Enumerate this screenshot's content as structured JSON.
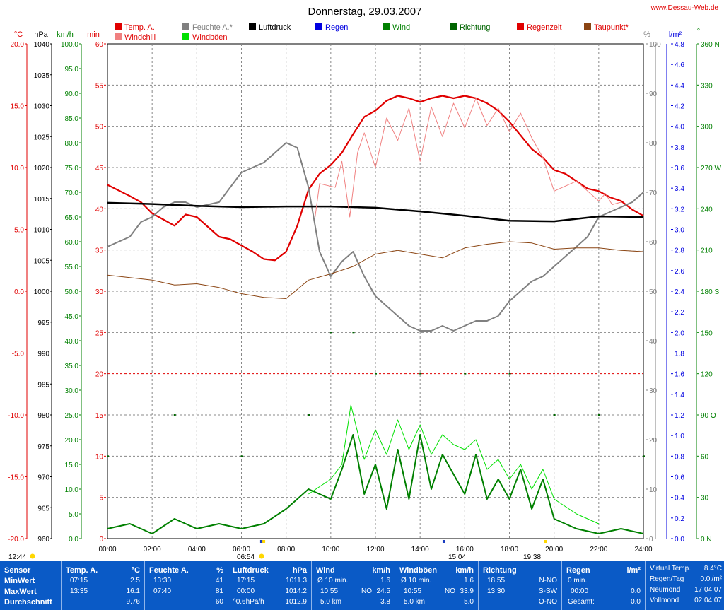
{
  "title": "Donnerstag, 29.03.2007",
  "site": "www.Dessau-Web.de",
  "colors": {
    "temp": "#e00000",
    "windchill": "#f08080",
    "humidity": "#808080",
    "pressure": "#000000",
    "rain": "#0000e0",
    "wind": "#008000",
    "windgust": "#00e000",
    "direction": "#006400",
    "raintime": "#e00000",
    "dewpoint": "#8b4513",
    "panel": "#0a5ac6"
  },
  "legend": [
    {
      "label": "Temp. A.",
      "color": "#e00000"
    },
    {
      "label": "Windchill",
      "color": "#f08080"
    },
    {
      "label": "Feuchte A.*",
      "color": "#808080"
    },
    {
      "label": "Windböen",
      "color": "#00e000"
    },
    {
      "label": "Luftdruck",
      "color": "#000000"
    },
    {
      "label": "Regen",
      "color": "#0000e0"
    },
    {
      "label": "Wind",
      "color": "#008000"
    },
    {
      "label": "Richtung",
      "color": "#006400"
    },
    {
      "label": "Regenzeit",
      "color": "#e00000"
    },
    {
      "label": "Taupunkt*",
      "color": "#8b4513"
    }
  ],
  "axes": {
    "temp": {
      "unit": "°C",
      "ticks": [
        "20.0",
        "15.0",
        "10.0",
        "5.0",
        "0.0",
        "-5.0",
        "-10.0",
        "-15.0",
        "-20.0"
      ]
    },
    "pressure": {
      "unit": "hPa",
      "ticks": [
        "1040",
        "1035",
        "1030",
        "1025",
        "1020",
        "1015",
        "1010",
        "1005",
        "1000",
        "995",
        "990",
        "985",
        "980",
        "975",
        "970",
        "965",
        "960"
      ]
    },
    "wind": {
      "unit": "km/h",
      "ticks": [
        "100.0",
        "95.0",
        "90.0",
        "85.0",
        "80.0",
        "75.0",
        "70.0",
        "65.0",
        "60.0",
        "55.0",
        "50.0",
        "45.0",
        "40.0",
        "35.0",
        "30.0",
        "25.0",
        "20.0",
        "15.0",
        "10.0",
        "5.0",
        "0.0"
      ]
    },
    "minutes": {
      "unit": "min",
      "ticks": [
        "60",
        "55",
        "50",
        "45",
        "40",
        "35",
        "30",
        "25",
        "20",
        "15",
        "10",
        "5",
        "0"
      ]
    },
    "humidity": {
      "unit": "%",
      "ticks": [
        "100",
        "90",
        "80",
        "70",
        "60",
        "50",
        "40",
        "30",
        "20",
        "10",
        "0"
      ]
    },
    "rain": {
      "unit": "l/m²",
      "ticks": [
        "4.8",
        "4.6",
        "4.4",
        "4.2",
        "4.0",
        "3.8",
        "3.6",
        "3.4",
        "3.2",
        "3.0",
        "2.8",
        "2.6",
        "2.4",
        "2.2",
        "2.0",
        "1.8",
        "1.6",
        "1.4",
        "1.2",
        "1.0",
        "0.8",
        "0.6",
        "0.4",
        "0.2",
        "0.0"
      ]
    },
    "direction": {
      "unit": "°",
      "ticks": [
        "360 N",
        "330",
        "300",
        "270 W",
        "240",
        "210",
        "180 S",
        "150",
        "120",
        "90 O",
        "60",
        "30",
        "0 N"
      ]
    },
    "time": {
      "ticks": [
        "00:00",
        "02:00",
        "04:00",
        "06:00",
        "08:00",
        "10:00",
        "12:00",
        "14:00",
        "16:00",
        "18:00",
        "20:00",
        "22:00",
        "24:00"
      ]
    }
  },
  "sun_markers": {
    "daylength": "12:44",
    "sunrise": "06:54",
    "noon": "15:04",
    "sunset": "19:38"
  },
  "chart_data": {
    "type": "line",
    "title": "Donnerstag, 29.03.2007",
    "xlabel": "",
    "x_hours_range": [
      0,
      24
    ],
    "series": [
      {
        "name": "Temp. A.",
        "unit": "°C",
        "x": [
          0,
          1,
          1.5,
          2,
          2.5,
          3,
          3.5,
          4,
          4.5,
          5,
          5.5,
          6,
          6.5,
          7,
          7.5,
          8,
          8.5,
          9,
          9.5,
          10,
          10.5,
          11,
          11.5,
          12,
          12.5,
          13,
          13.5,
          14,
          14.5,
          15,
          15.5,
          16,
          16.5,
          17,
          17.5,
          18,
          18.5,
          19,
          19.5,
          20,
          20.5,
          21,
          21.5,
          22,
          22.5,
          23,
          23.5,
          24
        ],
        "y": [
          8.6,
          7.7,
          7.2,
          6.3,
          5.8,
          5.3,
          6.2,
          6.0,
          5.2,
          4.4,
          4.2,
          3.7,
          3.2,
          2.6,
          2.5,
          3.2,
          5.3,
          8.2,
          9.5,
          10.2,
          11.2,
          12.7,
          14.1,
          14.6,
          15.4,
          15.8,
          15.6,
          15.3,
          15.6,
          15.8,
          15.6,
          15.8,
          15.6,
          15.2,
          14.6,
          13.7,
          12.6,
          11.5,
          10.8,
          9.8,
          9.5,
          8.9,
          8.3,
          8.1,
          7.6,
          7.3,
          6.6,
          6.1
        ]
      },
      {
        "name": "Feuchte A.*",
        "unit": "%",
        "x": [
          0,
          1,
          1.5,
          2,
          2.5,
          3,
          3.5,
          4,
          5,
          5.5,
          6,
          6.5,
          7,
          7.5,
          8,
          8.5,
          9,
          9.5,
          10,
          10.5,
          11,
          11.5,
          12,
          12.5,
          13,
          13.5,
          14,
          14.5,
          15,
          15.5,
          16,
          16.5,
          17,
          17.5,
          18,
          18.5,
          19,
          19.5,
          20,
          20.5,
          21,
          21.5,
          22,
          22.5,
          23,
          23.5,
          24
        ],
        "y": [
          59,
          61,
          64,
          65,
          67,
          68,
          68,
          67,
          68,
          71,
          74,
          75,
          76,
          78,
          80,
          79,
          71,
          58,
          53,
          56,
          58,
          53,
          49,
          47,
          45,
          43,
          42,
          42,
          43,
          42,
          43,
          44,
          44,
          45,
          48,
          50,
          52,
          53,
          55,
          57,
          59,
          61,
          65,
          66,
          67,
          68,
          70
        ]
      },
      {
        "name": "Luftdruck",
        "unit": "hPa",
        "x": [
          0,
          2,
          4,
          6,
          8,
          10,
          12,
          14,
          16,
          18,
          20,
          22,
          24
        ],
        "y": [
          1014.3,
          1014.1,
          1013.8,
          1013.6,
          1013.7,
          1013.7,
          1013.5,
          1012.9,
          1012.2,
          1011.4,
          1011.3,
          1012.1,
          1012.0
        ]
      },
      {
        "name": "Taupunkt*",
        "unit": "°C",
        "x": [
          0,
          1,
          2,
          3,
          4,
          5,
          6,
          7,
          8,
          9,
          10,
          11,
          12,
          13,
          14,
          15,
          16,
          17,
          18,
          19,
          20,
          21,
          22,
          23,
          24
        ],
        "y": [
          1.3,
          1.1,
          0.9,
          0.5,
          0.6,
          0.3,
          -0.2,
          -0.5,
          -0.6,
          0.9,
          1.4,
          2.0,
          3.0,
          3.3,
          3.0,
          2.7,
          3.5,
          3.8,
          4.0,
          3.9,
          3.4,
          3.5,
          3.5,
          3.3,
          3.2
        ]
      },
      {
        "name": "Windchill",
        "unit": "°C",
        "x": [
          9.3,
          9.5,
          10.2,
          10.5,
          10.85,
          11.2,
          11.5,
          12,
          12.5,
          13,
          13.5,
          14,
          14.5,
          15,
          15.5,
          16,
          16.5,
          17,
          17.5,
          18,
          18.5,
          19,
          19.5,
          20,
          21,
          22,
          22.3,
          22.6,
          23
        ],
        "y": [
          6.0,
          8.7,
          8.4,
          10.5,
          6.0,
          11.2,
          12.8,
          10.0,
          14.0,
          12.2,
          14.8,
          10.5,
          14.9,
          12.5,
          15.2,
          13.2,
          15.6,
          13.4,
          14.8,
          12.9,
          14.4,
          12.4,
          10.8,
          8.1,
          8.9,
          7.3,
          7.9,
          7.0,
          7.2
        ]
      },
      {
        "name": "Wind",
        "unit": "km/h",
        "x": [
          0,
          1,
          2,
          3,
          4,
          5,
          6,
          7,
          8,
          9,
          10,
          10.5,
          11,
          11.5,
          12,
          12.5,
          13,
          13.5,
          14,
          14.5,
          15,
          15.5,
          16,
          16.5,
          17,
          17.5,
          18,
          18.5,
          19,
          19.5,
          20,
          21,
          22,
          23,
          24
        ],
        "y": [
          2,
          3,
          1,
          4,
          2,
          3,
          2,
          3,
          6,
          10,
          8,
          14,
          21,
          9,
          15,
          6,
          18,
          8,
          21,
          10,
          17,
          13,
          9,
          17,
          8,
          12,
          8,
          14,
          6,
          12,
          4,
          2,
          1,
          2,
          1
        ]
      },
      {
        "name": "Windböen",
        "unit": "km/h",
        "x": [
          9,
          10,
          10.5,
          10.9,
          11.5,
          12,
          12.5,
          13,
          13.5,
          14,
          14.5,
          15,
          15.5,
          16,
          16.5,
          17,
          17.5,
          18,
          18.5,
          19,
          19.5,
          20,
          21,
          22
        ],
        "y": [
          9,
          12,
          15,
          27,
          16,
          22,
          17,
          24,
          18,
          23,
          17,
          21,
          19,
          18,
          20,
          14,
          16,
          12,
          15,
          10,
          14,
          8,
          5,
          3
        ]
      },
      {
        "name": "Richtung",
        "unit": "°",
        "x": [
          0,
          3,
          6,
          9,
          10,
          11,
          12,
          14,
          16,
          18,
          20,
          22,
          24
        ],
        "y": [
          60,
          90,
          60,
          90,
          150,
          150,
          120,
          120,
          120,
          120,
          90,
          90,
          60
        ]
      }
    ]
  },
  "stats": {
    "sensor": {
      "header": "Sensor",
      "rows": [
        "MinWert",
        "MaxWert",
        "Durchschnitt"
      ]
    },
    "temp": {
      "header": "Temp. A.",
      "unit": "°C",
      "rows": [
        [
          "07:15",
          "2.5"
        ],
        [
          "13:35",
          "16.1"
        ],
        [
          "",
          "9.76"
        ]
      ]
    },
    "humidity": {
      "header": "Feuchte A.",
      "unit": "%",
      "rows": [
        [
          "13:30",
          "41"
        ],
        [
          "07:40",
          "81"
        ],
        [
          "",
          "60"
        ]
      ]
    },
    "pressure": {
      "header": "Luftdruck",
      "unit": "hPa",
      "rows": [
        [
          "17:15",
          "1011.3"
        ],
        [
          "00:00",
          "1014.2"
        ],
        [
          "^0.6hPa/h",
          "1012.9"
        ]
      ]
    },
    "wind": {
      "header": "Wind",
      "unit": "km/h",
      "rows": [
        [
          "Ø 10 min.",
          "",
          "1.6"
        ],
        [
          "10:55",
          "NO",
          "24.5"
        ],
        [
          "5.0 km",
          "",
          "3.8"
        ]
      ]
    },
    "gust": {
      "header": "Windböen",
      "unit": "km/h",
      "rows": [
        [
          "Ø 10 min.",
          "",
          "1.6"
        ],
        [
          "10:55",
          "NO",
          "33.9"
        ],
        [
          "5.0 km",
          "",
          "5.0"
        ]
      ]
    },
    "direction": {
      "header": "Richtung",
      "rows": [
        [
          "18:55",
          "N-NO"
        ],
        [
          "13:30",
          "S-SW"
        ],
        [
          "",
          "O-NO"
        ]
      ]
    },
    "rain": {
      "header": "Regen",
      "unit": "l/m²",
      "rows": [
        [
          "0 min.",
          ""
        ],
        [
          "00:00",
          "0.0"
        ],
        [
          "Gesamt:",
          "0.0"
        ]
      ]
    },
    "extra": {
      "rows": [
        [
          "Virtual Temp.",
          "8.4°C"
        ],
        [
          "Regen/Tag",
          "0.0l/m²"
        ],
        [
          "Neumond",
          "17.04.07"
        ],
        [
          "Vollmond",
          "02.04.07"
        ]
      ]
    }
  }
}
